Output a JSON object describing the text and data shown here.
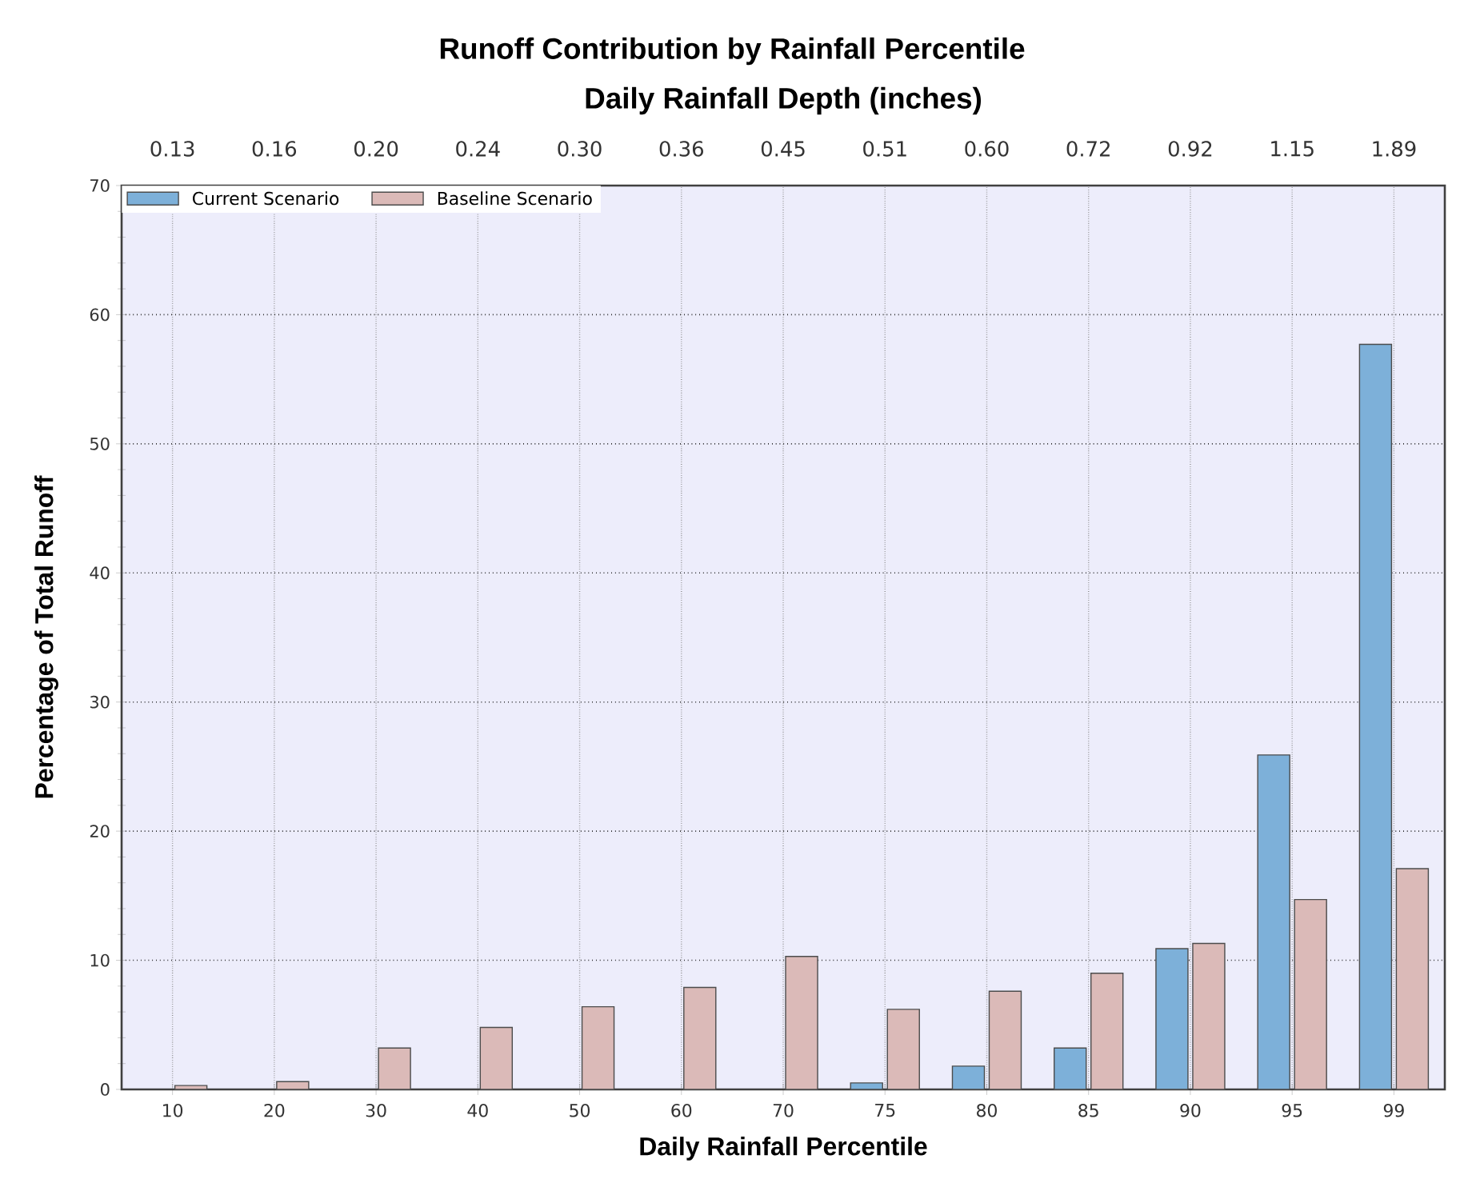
{
  "chart_data": {
    "type": "bar",
    "title": "Runoff Contribution by Rainfall Percentile",
    "subtitle": "Daily Rainfall Depth (inches)",
    "xlabel": "Daily Rainfall Percentile",
    "ylabel": "Percentage of Total Runoff",
    "categories": [
      "10",
      "20",
      "30",
      "40",
      "50",
      "60",
      "70",
      "75",
      "80",
      "85",
      "90",
      "95",
      "99"
    ],
    "series": [
      {
        "name": "Current Scenario",
        "color": "#7db0d9",
        "values": [
          null,
          null,
          null,
          null,
          null,
          null,
          null,
          0.5,
          1.8,
          3.2,
          10.9,
          25.9,
          57.7
        ]
      },
      {
        "name": "Baseline Scenario",
        "color": "#dbbab8",
        "values": [
          0.3,
          0.6,
          3.2,
          4.8,
          6.4,
          7.9,
          10.3,
          6.2,
          7.6,
          9.0,
          11.3,
          14.7,
          17.1
        ]
      }
    ],
    "ylim": [
      0,
      70
    ],
    "yticks": [
      0,
      10,
      20,
      30,
      40,
      50,
      60,
      70
    ],
    "annotations": [
      "0.13",
      "0.16",
      "0.20",
      "0.24",
      "0.30",
      "0.36",
      "0.45",
      "0.51",
      "0.60",
      "0.72",
      "0.92",
      "1.15",
      "1.89"
    ],
    "grid": true,
    "legend": "top left"
  }
}
